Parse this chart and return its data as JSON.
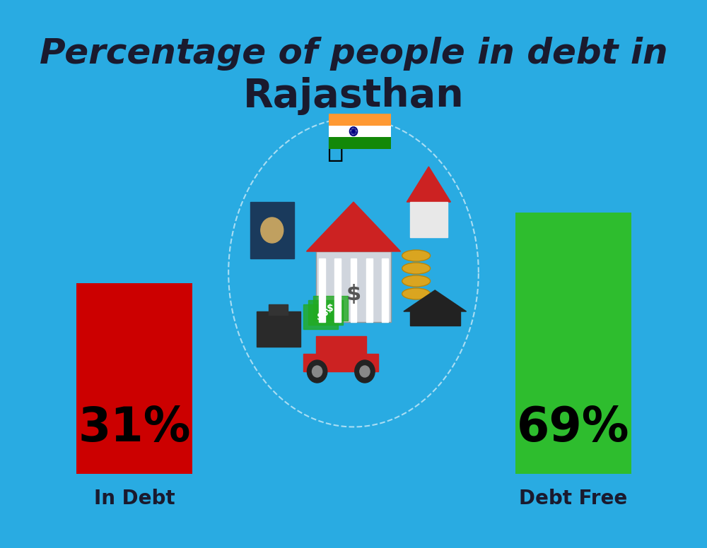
{
  "background_color": "#29ABE2",
  "title_line1": "Percentage of people in debt in",
  "title_line2": "Rajasthan",
  "title_color": "#1a1a2e",
  "title_fontsize1": 36,
  "title_fontsize2": 40,
  "bar_left_value": "31%",
  "bar_left_label": "In Debt",
  "bar_left_color": "#CC0000",
  "bar_right_value": "69%",
  "bar_right_label": "Debt Free",
  "bar_right_color": "#2EBD2E",
  "label_color": "#1a1a2e",
  "value_fontsize": 48,
  "label_fontsize": 20,
  "flag_saffron": "#FF9933",
  "flag_white": "#FFFFFF",
  "flag_green": "#138808",
  "flag_navy": "#000080"
}
